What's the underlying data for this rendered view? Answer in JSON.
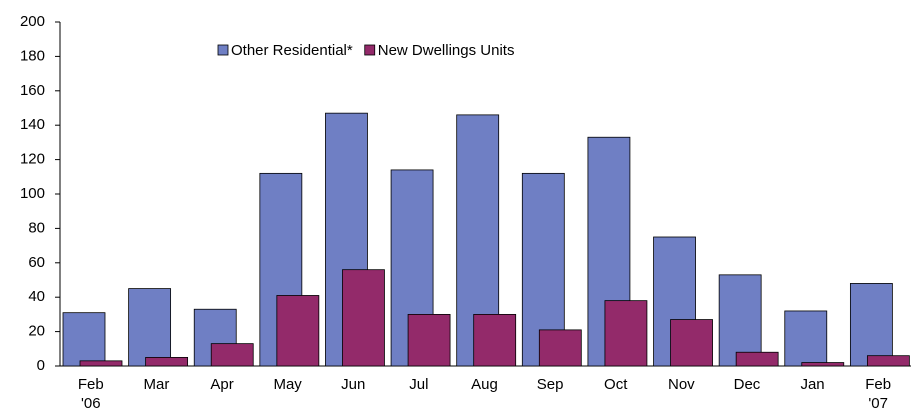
{
  "chart_data": {
    "type": "bar",
    "categories": [
      "Feb '06",
      "Mar",
      "Apr",
      "May",
      "Jun",
      "Jul",
      "Aug",
      "Sep",
      "Oct",
      "Nov",
      "Dec",
      "Jan",
      "Feb '07"
    ],
    "series": [
      {
        "name": "Other Residential*",
        "color": "#6f7fc4",
        "values": [
          31,
          45,
          33,
          112,
          147,
          114,
          146,
          112,
          133,
          75,
          53,
          32,
          48
        ]
      },
      {
        "name": "New Dwellings Units",
        "color": "#932a6a",
        "values": [
          3,
          5,
          13,
          41,
          56,
          30,
          30,
          21,
          38,
          27,
          8,
          2,
          6
        ]
      }
    ],
    "ylim": [
      0,
      200
    ],
    "yticks": [
      0,
      20,
      40,
      60,
      80,
      100,
      120,
      140,
      160,
      180,
      200
    ],
    "legend": "top"
  }
}
